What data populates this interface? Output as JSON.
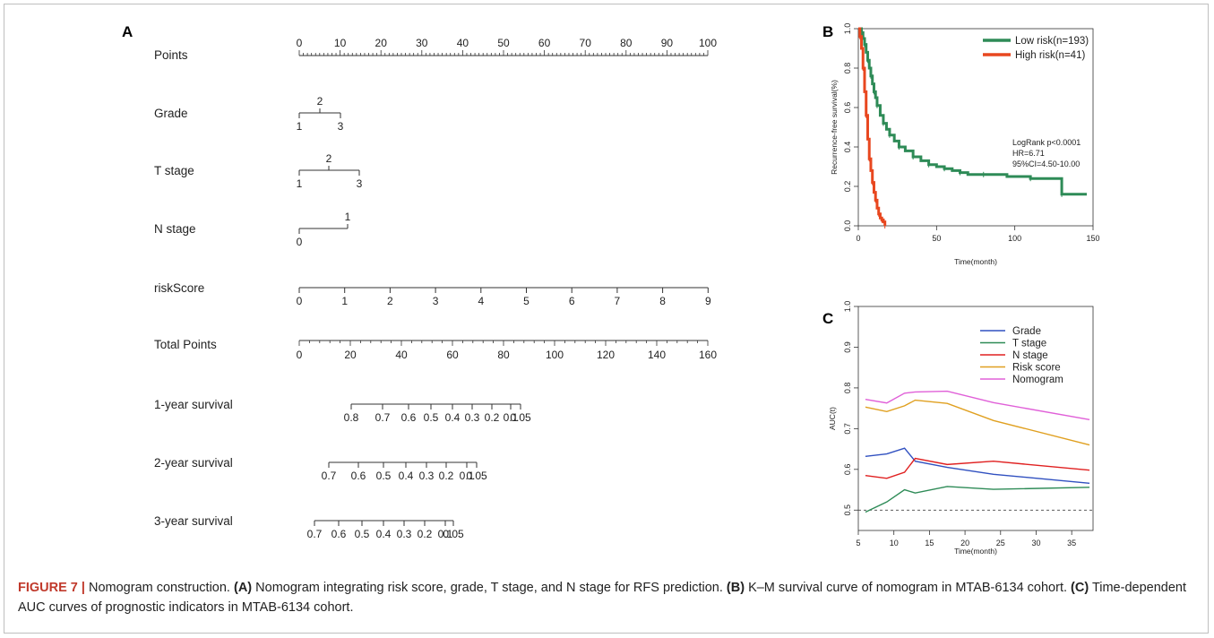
{
  "panel_labels": [
    "A",
    "B",
    "C"
  ],
  "nomogram": {
    "rows": [
      {
        "label": "Points",
        "ticks": [
          "0",
          "10",
          "20",
          "30",
          "40",
          "50",
          "60",
          "70",
          "80",
          "90",
          "100"
        ]
      },
      {
        "label": "Grade",
        "ticks": [
          "1",
          "2",
          "3"
        ]
      },
      {
        "label": "T  stage",
        "ticks": [
          "1",
          "2",
          "3"
        ]
      },
      {
        "label": "N  stage",
        "ticks": [
          "0",
          "1"
        ]
      },
      {
        "label": "riskScore",
        "ticks": [
          "0",
          "1",
          "2",
          "3",
          "4",
          "5",
          "6",
          "7",
          "8",
          "9"
        ]
      },
      {
        "label": "Total Points",
        "ticks": [
          "0",
          "20",
          "40",
          "60",
          "80",
          "100",
          "120",
          "140",
          "160"
        ]
      },
      {
        "label": "1-year survival",
        "ticks": [
          "0.8",
          "0.7",
          "0.6",
          "0.5",
          "0.4",
          "0.3",
          "0.2",
          "0.1",
          "0.05"
        ]
      },
      {
        "label": "2-year survival",
        "ticks": [
          "0.7",
          "0.6",
          "0.5",
          "0.4",
          "0.3",
          "0.2",
          "0.1",
          "0.05"
        ]
      },
      {
        "label": "3-year survival",
        "ticks": [
          "0.7",
          "0.6",
          "0.5",
          "0.4",
          "0.3",
          "0.2",
          "0.1",
          "0.05"
        ]
      }
    ]
  },
  "chart_data": [
    {
      "type": "line",
      "title": "",
      "xlabel": "Time(month)",
      "ylabel": "Recurrence-free survival(%)",
      "xlim": [
        0,
        150
      ],
      "ylim": [
        0,
        1
      ],
      "xticks": [
        "0",
        "50",
        "100",
        "150"
      ],
      "yticks": [
        "0.0",
        "0.2",
        "0.4",
        "0.6",
        "0.8",
        "1.0"
      ],
      "legend_position": "top-right",
      "annotation": [
        "LogRank p<0.0001",
        "HR=6.71",
        "95%CI=4.50-10.00"
      ],
      "series": [
        {
          "name": "Low risk(n=193)",
          "color": "#2e8b57",
          "x": [
            0,
            2,
            3,
            4,
            5,
            6,
            7,
            8,
            9,
            10,
            11,
            12,
            14,
            16,
            18,
            20,
            23,
            26,
            30,
            35,
            40,
            45,
            50,
            55,
            60,
            65,
            70,
            80,
            95,
            110,
            130,
            130,
            146
          ],
          "y": [
            1.0,
            0.98,
            0.95,
            0.92,
            0.88,
            0.84,
            0.8,
            0.76,
            0.72,
            0.68,
            0.65,
            0.61,
            0.56,
            0.52,
            0.49,
            0.46,
            0.43,
            0.4,
            0.38,
            0.35,
            0.33,
            0.31,
            0.3,
            0.29,
            0.28,
            0.27,
            0.26,
            0.26,
            0.25,
            0.24,
            0.24,
            0.16,
            0.16
          ]
        },
        {
          "name": "High risk(n=41)",
          "color": "#e8471f",
          "x": [
            0,
            1,
            2,
            3,
            4,
            5,
            6,
            7,
            8,
            9,
            10,
            11,
            12,
            13,
            14,
            15,
            16,
            17
          ],
          "y": [
            1.0,
            0.96,
            0.9,
            0.8,
            0.68,
            0.56,
            0.44,
            0.34,
            0.28,
            0.22,
            0.17,
            0.13,
            0.09,
            0.06,
            0.04,
            0.03,
            0.02,
            0.0
          ]
        }
      ]
    },
    {
      "type": "line",
      "title": "",
      "xlabel": "Time(month)",
      "ylabel": "AUC(t)",
      "xlim": [
        5,
        38
      ],
      "ylim": [
        0.45,
        1.0
      ],
      "xticks": [
        "5",
        "10",
        "15",
        "20",
        "25",
        "30",
        "35"
      ],
      "yticks": [
        "0.5",
        "0.6",
        "0.7",
        "0.8",
        "0.9",
        "1.0"
      ],
      "reference_line": 0.5,
      "legend_position": "top-right",
      "series": [
        {
          "name": "Grade",
          "color": "#3050c0",
          "x": [
            6,
            9,
            11.5,
            13,
            17.5,
            24,
            37.5
          ],
          "y": [
            0.632,
            0.638,
            0.652,
            0.62,
            0.605,
            0.588,
            0.566
          ]
        },
        {
          "name": "T stage",
          "color": "#2e8b57",
          "x": [
            6,
            9,
            11.5,
            13,
            17.5,
            24,
            37.5
          ],
          "y": [
            0.495,
            0.52,
            0.55,
            0.542,
            0.558,
            0.551,
            0.556
          ]
        },
        {
          "name": "N stage",
          "color": "#e02020",
          "x": [
            6,
            9,
            11.5,
            13,
            17.5,
            24,
            37.5
          ],
          "y": [
            0.585,
            0.578,
            0.593,
            0.627,
            0.612,
            0.62,
            0.598
          ]
        },
        {
          "name": "Risk score",
          "color": "#e0a020",
          "x": [
            6,
            9,
            11.5,
            13,
            17.5,
            24,
            37.5
          ],
          "y": [
            0.753,
            0.742,
            0.756,
            0.77,
            0.762,
            0.72,
            0.66
          ]
        },
        {
          "name": "Nomogram",
          "color": "#e060d8",
          "x": [
            6,
            9,
            11.5,
            13,
            17.5,
            24,
            37.5
          ],
          "y": [
            0.772,
            0.763,
            0.787,
            0.79,
            0.792,
            0.764,
            0.722
          ]
        }
      ]
    }
  ],
  "caption": {
    "figure_label": "FIGURE 7 |",
    "text1": " Nomogram construction. ",
    "a_label": "(A)",
    "text2": " Nomogram integrating risk score, grade, T stage, and N stage for RFS prediction. ",
    "b_label": "(B)",
    "text3": " K–M survival curve of nomogram in MTAB-6134 cohort. ",
    "c_label": "(C)",
    "text4": " Time-dependent AUC curves of prognostic indicators in MTAB-6134 cohort."
  }
}
